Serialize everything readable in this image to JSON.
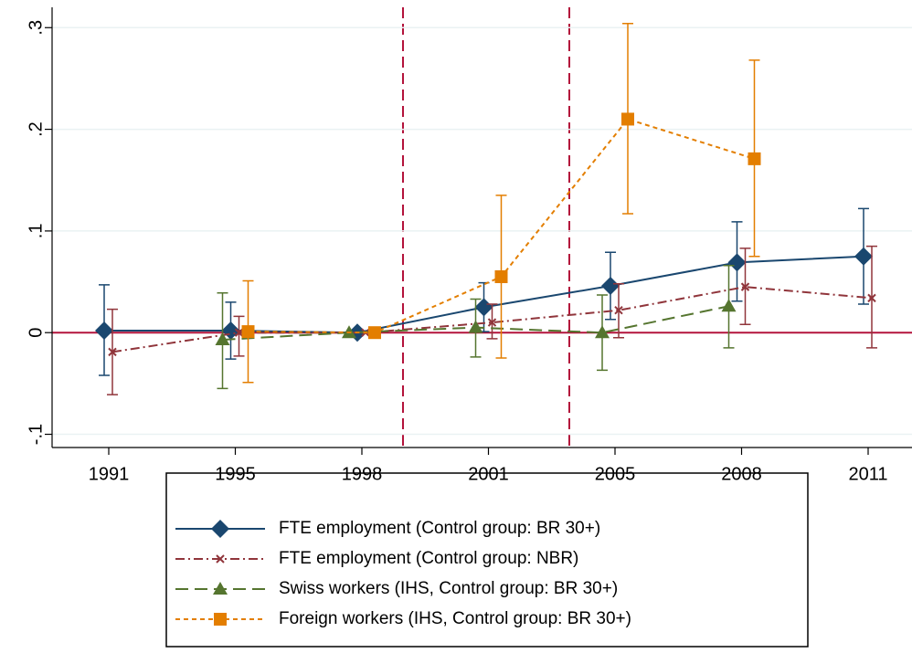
{
  "chart_data": {
    "type": "line",
    "categories": [
      "1991",
      "1995",
      "1998",
      "2001",
      "2005",
      "2008",
      "2011"
    ],
    "ylim": [
      -0.113,
      0.32
    ],
    "yticks": [
      {
        "value": -0.1,
        "label": "-.1"
      },
      0,
      {
        "value": 0.1,
        "label": ".1"
      },
      {
        "value": 0.2,
        "label": ".2"
      },
      {
        "value": 0.3,
        "label": ".3"
      }
    ],
    "grid": true,
    "hline": 0,
    "series": [
      {
        "name": "FTE employment (Control group: BR 30+)",
        "color": "#1a476f",
        "marker": "diamond",
        "dash": "solid",
        "values": [
          0.002,
          0.002,
          0,
          0.025,
          0.046,
          0.069,
          0.075
        ],
        "lower": [
          -0.042,
          -0.026,
          null,
          0.001,
          0.013,
          0.031,
          0.028
        ],
        "upper": [
          0.047,
          0.03,
          null,
          0.049,
          0.079,
          0.109,
          0.122
        ]
      },
      {
        "name": "FTE employment (Control group: NBR)",
        "color": "#90353b",
        "marker": "x",
        "dash": "dashdot",
        "values": [
          -0.019,
          0,
          0,
          0.01,
          0.022,
          0.045,
          0.034
        ],
        "lower": [
          -0.061,
          -0.023,
          null,
          -0.006,
          -0.005,
          0.008,
          -0.015
        ],
        "upper": [
          0.023,
          0.016,
          null,
          0.028,
          0.048,
          0.083,
          0.085
        ]
      },
      {
        "name": "Swiss workers (IHS, Control group: BR 30+)",
        "color": "#55752f",
        "marker": "triangle",
        "dash": "longdash",
        "values": [
          null,
          -0.007,
          0,
          0.005,
          0,
          0.026,
          null
        ],
        "lower": [
          null,
          -0.055,
          null,
          -0.024,
          -0.037,
          -0.015,
          null
        ],
        "upper": [
          null,
          0.039,
          null,
          0.033,
          0.037,
          0.066,
          null
        ]
      },
      {
        "name": "Foreign workers (IHS, Control group: BR 30+)",
        "color": "#e37e00",
        "marker": "square",
        "dash": "shortdash",
        "values": [
          null,
          0.001,
          0,
          0.055,
          0.21,
          0.171,
          null
        ],
        "lower": [
          null,
          -0.049,
          null,
          -0.025,
          0.117,
          0.075,
          null
        ],
        "upper": [
          null,
          0.051,
          null,
          0.135,
          0.304,
          0.268,
          null
        ]
      }
    ]
  }
}
